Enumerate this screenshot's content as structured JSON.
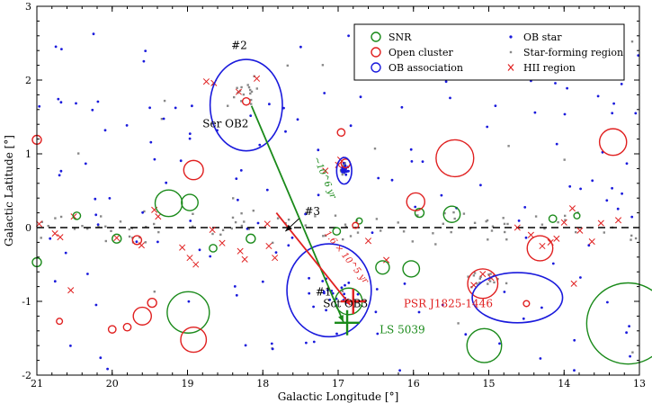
{
  "chart_data": {
    "type": "scatter",
    "title": "",
    "xlabel": "Galactic Longitude [°]",
    "ylabel": "Galactic Latitude [°]",
    "xlim": [
      21,
      13
    ],
    "ylim": [
      -2,
      3
    ],
    "xticks": [
      21,
      20,
      19,
      18,
      17,
      16,
      15,
      14,
      13
    ],
    "yticks": [
      -2,
      -1,
      0,
      1,
      2,
      3
    ],
    "grid": false,
    "legend": {
      "position": "top-right",
      "entries": [
        {
          "label": "SNR",
          "symbol": "circle",
          "color": "#1a8a1a"
        },
        {
          "label": "Open cluster",
          "symbol": "circle",
          "color": "#e02020"
        },
        {
          "label": "OB association",
          "symbol": "circle",
          "color": "#1a1adc"
        },
        {
          "label": "OB star",
          "symbol": "dot",
          "color": "#1a1adc"
        },
        {
          "label": "Star-forming region",
          "symbol": "square",
          "color": "#888888"
        },
        {
          "label": "HII region",
          "symbol": "cross",
          "color": "#e02020"
        }
      ]
    },
    "colors": {
      "snr": "#1a8a1a",
      "open_cluster": "#e02020",
      "ob_association": "#1a1adc",
      "ob_star": "#1a1adc",
      "sfr": "#888888",
      "hii": "#e02020",
      "track_green": "#1a8a1a",
      "track_red": "#e02020"
    },
    "ob_associations": [
      {
        "name": "Ser OB2",
        "tag": "#2",
        "l": 18.22,
        "b": 1.66,
        "rl": 0.48,
        "rb": 0.62
      },
      {
        "name": "Sct OB3",
        "tag": "#1",
        "l": 17.12,
        "b": -0.85,
        "rl": 0.56,
        "rb": 0.63
      },
      {
        "name": "",
        "tag": "",
        "l": 14.62,
        "b": -0.95,
        "rl": 0.6,
        "rb": 0.34
      },
      {
        "name": "",
        "tag": "",
        "l": 16.92,
        "b": 0.77,
        "rl": 0.1,
        "rb": 0.18
      }
    ],
    "snr": [
      {
        "l": 19.25,
        "b": 0.33,
        "r": 0.18
      },
      {
        "l": 18.97,
        "b": 0.34,
        "r": 0.11
      },
      {
        "l": 18.99,
        "b": -1.15,
        "r": 0.28
      },
      {
        "l": 20.47,
        "b": 0.16,
        "r": 0.05
      },
      {
        "l": 19.94,
        "b": -0.15,
        "r": 0.06
      },
      {
        "l": 18.66,
        "b": -0.28,
        "r": 0.05
      },
      {
        "l": 18.16,
        "b": -0.15,
        "r": 0.06
      },
      {
        "l": 21.0,
        "b": -0.47,
        "r": 0.06
      },
      {
        "l": 16.86,
        "b": -1.0,
        "r": 0.18
      },
      {
        "l": 16.41,
        "b": -0.54,
        "r": 0.09
      },
      {
        "l": 16.03,
        "b": -0.56,
        "r": 0.11
      },
      {
        "l": 15.92,
        "b": 0.2,
        "r": 0.06
      },
      {
        "l": 15.49,
        "b": 0.18,
        "r": 0.11
      },
      {
        "l": 15.06,
        "b": -1.6,
        "r": 0.23
      },
      {
        "l": 14.15,
        "b": 0.12,
        "r": 0.05
      },
      {
        "l": 13.83,
        "b": 0.16,
        "r": 0.04
      },
      {
        "l": 17.02,
        "b": -0.05,
        "r": 0.05
      },
      {
        "l": 16.72,
        "b": 0.09,
        "r": 0.04
      },
      {
        "l": 13.15,
        "b": -1.3,
        "r": 0.55
      }
    ],
    "open_clusters": [
      {
        "l": 21.0,
        "b": 1.19,
        "r": 0.06
      },
      {
        "l": 18.92,
        "b": 0.78,
        "r": 0.13
      },
      {
        "l": 18.92,
        "b": -1.52,
        "r": 0.17
      },
      {
        "l": 19.6,
        "b": -1.2,
        "r": 0.12
      },
      {
        "l": 19.47,
        "b": -1.02,
        "r": 0.06
      },
      {
        "l": 19.8,
        "b": -1.35,
        "r": 0.05
      },
      {
        "l": 20.0,
        "b": -1.38,
        "r": 0.05
      },
      {
        "l": 20.7,
        "b": -1.27,
        "r": 0.04
      },
      {
        "l": 19.67,
        "b": -0.17,
        "r": 0.06
      },
      {
        "l": 16.96,
        "b": 1.29,
        "r": 0.05
      },
      {
        "l": 16.9,
        "b": 0.87,
        "r": 0.06
      },
      {
        "l": 15.97,
        "b": 0.35,
        "r": 0.12
      },
      {
        "l": 15.45,
        "b": 0.94,
        "r": 0.25
      },
      {
        "l": 15.08,
        "b": -0.76,
        "r": 0.2
      },
      {
        "l": 14.32,
        "b": -0.28,
        "r": 0.17
      },
      {
        "l": 13.35,
        "b": 1.16,
        "r": 0.18
      },
      {
        "l": 16.77,
        "b": 0.03,
        "r": 0.04
      },
      {
        "l": 18.22,
        "b": 1.71,
        "r": 0.05
      },
      {
        "l": 14.5,
        "b": -1.03,
        "r": 0.04
      }
    ],
    "hii_regions": [
      {
        "l": 20.97,
        "b": 0.05
      },
      {
        "l": 20.76,
        "b": -0.08
      },
      {
        "l": 20.69,
        "b": -0.13
      },
      {
        "l": 20.55,
        "b": -0.85
      },
      {
        "l": 20.51,
        "b": 0.15
      },
      {
        "l": 19.94,
        "b": -0.14
      },
      {
        "l": 19.61,
        "b": -0.24
      },
      {
        "l": 19.39,
        "b": 0.15
      },
      {
        "l": 19.07,
        "b": -0.27
      },
      {
        "l": 18.97,
        "b": -0.41
      },
      {
        "l": 18.89,
        "b": -0.5
      },
      {
        "l": 18.67,
        "b": -0.03
      },
      {
        "l": 18.54,
        "b": -0.21
      },
      {
        "l": 18.3,
        "b": -0.32
      },
      {
        "l": 18.24,
        "b": -0.43
      },
      {
        "l": 18.32,
        "b": 1.84
      },
      {
        "l": 18.08,
        "b": 2.02
      },
      {
        "l": 18.75,
        "b": 1.98
      },
      {
        "l": 17.94,
        "b": 0.05
      },
      {
        "l": 17.92,
        "b": -0.25
      },
      {
        "l": 17.0,
        "b": 0.85
      },
      {
        "l": 16.97,
        "b": 0.92
      },
      {
        "l": 17.17,
        "b": 0.77
      },
      {
        "l": 16.6,
        "b": -0.18
      },
      {
        "l": 16.36,
        "b": -0.44
      },
      {
        "l": 15.2,
        "b": -0.78
      },
      {
        "l": 15.08,
        "b": -0.63
      },
      {
        "l": 14.97,
        "b": -0.68
      },
      {
        "l": 14.62,
        "b": 0.0
      },
      {
        "l": 14.44,
        "b": -0.1
      },
      {
        "l": 14.29,
        "b": -0.25
      },
      {
        "l": 14.18,
        "b": -0.2
      },
      {
        "l": 14.1,
        "b": -0.15
      },
      {
        "l": 14.0,
        "b": 0.07
      },
      {
        "l": 13.89,
        "b": 0.26
      },
      {
        "l": 13.79,
        "b": -0.04
      },
      {
        "l": 13.63,
        "b": -0.19
      },
      {
        "l": 13.51,
        "b": 0.06
      },
      {
        "l": 13.28,
        "b": 0.1
      },
      {
        "l": 13.87,
        "b": -0.76
      },
      {
        "l": 18.65,
        "b": 1.96
      },
      {
        "l": 19.44,
        "b": 0.24
      },
      {
        "l": 17.84,
        "b": -0.41
      }
    ],
    "tracks": [
      {
        "label": "~10^6 yr",
        "color": "#1a8a1a",
        "from": {
          "l": 18.15,
          "b": 1.65
        },
        "to": {
          "l": 16.93,
          "b": -1.28
        }
      },
      {
        "label": "1.6 × 10^5 yr",
        "color": "#e02020",
        "from": {
          "l": 17.82,
          "b": 0.2
        },
        "to": {
          "l": 16.84,
          "b": -1.05
        }
      },
      {
        "label": "#3",
        "color": "#000000",
        "from": {
          "l": 17.52,
          "b": 0.12
        },
        "to": {
          "l": 17.7,
          "b": -0.05
        }
      }
    ],
    "annotations": [
      {
        "text": "#2",
        "l": 18.42,
        "b": 2.42,
        "color": "#000000"
      },
      {
        "text": "Ser OB2",
        "l": 18.8,
        "b": 1.36,
        "color": "#000000"
      },
      {
        "text": "#3",
        "l": 17.45,
        "b": 0.17,
        "color": "#000000"
      },
      {
        "text": "#1",
        "l": 17.3,
        "b": -0.92,
        "color": "#000000"
      },
      {
        "text": "Sct OB3",
        "l": 17.2,
        "b": -1.08,
        "color": "#000000"
      },
      {
        "text": "PSR J1825-1446",
        "l": 16.13,
        "b": -1.08,
        "color": "#e02020"
      },
      {
        "text": "LS 5039",
        "l": 16.45,
        "b": -1.43,
        "color": "#1a8a1a"
      }
    ],
    "special_sources": [
      {
        "name": "PSR J1825-1446",
        "l": 16.8,
        "b": -1.0,
        "color": "#e02020"
      },
      {
        "name": "LS 5039",
        "l": 16.88,
        "b": -1.29,
        "color": "#1a8a1a"
      }
    ],
    "galactic_plane": {
      "b": 0,
      "style": "dashed"
    },
    "ob_stars_count": 200,
    "sfr_count": 150
  }
}
